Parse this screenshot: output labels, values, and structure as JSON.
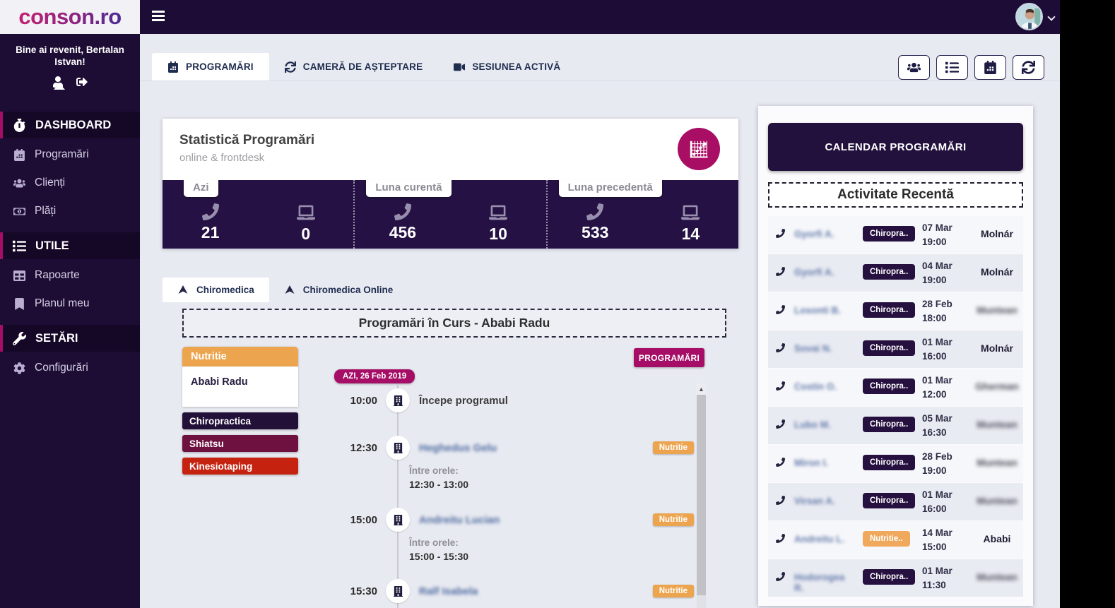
{
  "app": {
    "logo": "conson.ro"
  },
  "sidebar": {
    "welcome": "Bine ai revenit, Bertalan Istvan!",
    "items": [
      {
        "label": "DASHBOARD",
        "icon": "stopwatch-icon",
        "type": "section"
      },
      {
        "label": "Programări",
        "icon": "calendar-icon",
        "type": "item"
      },
      {
        "label": "Clienți",
        "icon": "users-icon",
        "type": "item"
      },
      {
        "label": "Plăți",
        "icon": "money-icon",
        "type": "item"
      },
      {
        "label": "UTILE",
        "icon": "list-icon",
        "type": "section"
      },
      {
        "label": "Rapoarte",
        "icon": "table-icon",
        "type": "item"
      },
      {
        "label": "Planul meu",
        "icon": "bookmark-icon",
        "type": "item"
      },
      {
        "label": "SETĂRI",
        "icon": "tools-icon",
        "type": "section"
      },
      {
        "label": "Configurări",
        "icon": "gears-icon",
        "type": "item"
      }
    ]
  },
  "tabs": [
    {
      "label": "PROGRAMĂRI",
      "icon": "calendar-icon",
      "active": true
    },
    {
      "label": "CAMERĂ DE AȘTEPTARE",
      "icon": "sync-icon",
      "active": false
    },
    {
      "label": "SESIUNEA ACTIVĂ",
      "icon": "video-icon",
      "active": false
    }
  ],
  "toolbar": [
    {
      "name": "clients-button",
      "icon": "users-icon"
    },
    {
      "name": "list-button",
      "icon": "list-icon"
    },
    {
      "name": "calendar-button",
      "icon": "calendar-icon"
    },
    {
      "name": "refresh-button",
      "icon": "sync-icon"
    }
  ],
  "stats": {
    "title": "Statistică Programări",
    "subtitle": "online & frontdesk",
    "groups": [
      {
        "label": "Azi",
        "phone": "21",
        "online": "0"
      },
      {
        "label": "Luna curentă",
        "phone": "456",
        "online": "10"
      },
      {
        "label": "Luna precedentă",
        "phone": "533",
        "online": "14"
      }
    ]
  },
  "clinics": [
    {
      "label": "Chiromedica",
      "active": true
    },
    {
      "label": "Chiromedica Online",
      "active": false
    }
  ],
  "in_progress": {
    "header": "Programări în Curs - Ababi Radu",
    "button": "PROGRAMĂRI",
    "panel": {
      "category": "Nutritie",
      "person": "Ababi Radu",
      "services": [
        "Chiropractica",
        "Shiatsu",
        "Kinesiotaping"
      ]
    },
    "day_badge": "AZI, 26 Feb 2019",
    "events": [
      {
        "time": "10:00",
        "title": "Începe programul",
        "blurred": false
      },
      {
        "time": "12:30",
        "title": "Heghedus Gelu",
        "blurred": true,
        "range_label": "Între orele:",
        "range": "12:30 - 13:00",
        "badge": "Nutritie"
      },
      {
        "time": "15:00",
        "title": "Andreitu Lucian",
        "blurred": true,
        "range_label": "Între orele:",
        "range": "15:00 - 15:30",
        "badge": "Nutritie"
      },
      {
        "time": "15:30",
        "title": "Ralf Isabela",
        "blurred": true,
        "badge": "Nutritie"
      }
    ]
  },
  "recent": {
    "calendar_button": "CALENDAR PROGRAMĂRI",
    "title": "Activitate Recentă",
    "rows": [
      {
        "name": "Gyorfi A.",
        "badge": "Chiropra..",
        "badge_color": "purple",
        "date": "07 Mar",
        "time": "19:00",
        "agent": "Molnár",
        "agent_blurred": false
      },
      {
        "name": "Gyorfi A.",
        "badge": "Chiropra..",
        "badge_color": "purple",
        "date": "04 Mar",
        "time": "19:00",
        "agent": "Molnár",
        "agent_blurred": false
      },
      {
        "name": "Losonti B.",
        "badge": "Chiropra..",
        "badge_color": "purple",
        "date": "28 Feb",
        "time": "18:00",
        "agent": "Muntean",
        "agent_blurred": true
      },
      {
        "name": "Sovai N.",
        "badge": "Chiropra..",
        "badge_color": "purple",
        "date": "01 Mar",
        "time": "16:00",
        "agent": "Molnár",
        "agent_blurred": false
      },
      {
        "name": "Costin O.",
        "badge": "Chiropra..",
        "badge_color": "purple",
        "date": "01 Mar",
        "time": "12:00",
        "agent": "Gherman",
        "agent_blurred": true
      },
      {
        "name": "Lubo M.",
        "badge": "Chiropra..",
        "badge_color": "purple",
        "date": "05 Mar",
        "time": "16:30",
        "agent": "Muntean",
        "agent_blurred": true
      },
      {
        "name": "Miron I.",
        "badge": "Chiropra..",
        "badge_color": "purple",
        "date": "28 Feb",
        "time": "19:00",
        "agent": "Muntean",
        "agent_blurred": true
      },
      {
        "name": "Virsan A.",
        "badge": "Chiropra..",
        "badge_color": "purple",
        "date": "01 Mar",
        "time": "16:00",
        "agent": "Muntean",
        "agent_blurred": true
      },
      {
        "name": "Andreitu L.",
        "badge": "Nutritie..",
        "badge_color": "orange",
        "date": "14 Mar",
        "time": "15:00",
        "agent": "Ababi",
        "agent_blurred": false
      },
      {
        "name": "Hodorogea R.",
        "badge": "Chiropra..",
        "badge_color": "purple",
        "date": "01 Mar",
        "time": "11:30",
        "agent": "Muntean",
        "agent_blurred": true
      }
    ]
  },
  "colors": {
    "accent_magenta": "#a50d66",
    "dark_purple": "#251144",
    "orange": "#eca54e",
    "red": "#c52310",
    "burgundy": "#6e1140",
    "badge_purple": "#26103f"
  }
}
